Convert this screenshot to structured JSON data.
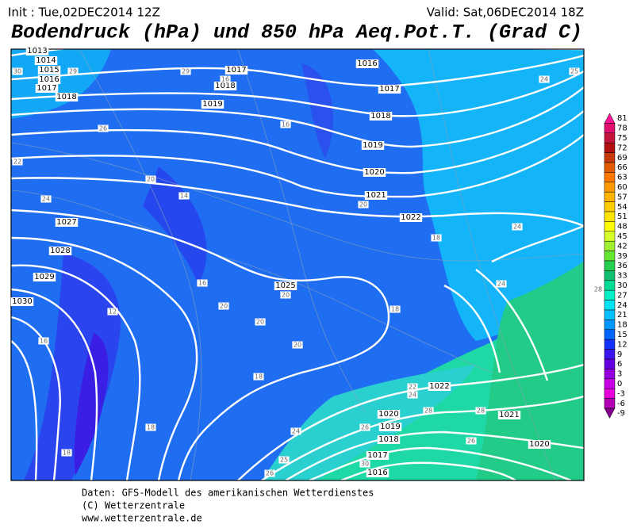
{
  "header": {
    "init": "Init : Tue,02DEC2014 12Z",
    "valid": "Valid: Sat,06DEC2014 18Z",
    "title": "Bodendruck (hPa) und 850 hPa Aeq.Pot.T. (Grad C)"
  },
  "isobar_labels": [
    1013,
    1014,
    1015,
    1016,
    1017,
    1018,
    1017,
    1018,
    1019,
    1016,
    1017,
    1018,
    1019,
    1020,
    1021,
    1022,
    1025,
    1027,
    1028,
    1029,
    1030,
    1022,
    1021,
    1020,
    1019,
    1018,
    1017,
    1016,
    1020
  ],
  "temperature_labels": [
    30,
    29,
    29,
    16,
    26,
    16,
    22,
    20,
    14,
    24,
    20,
    18,
    24,
    24,
    28,
    20,
    18,
    16,
    20,
    20,
    20,
    12,
    16,
    18,
    18,
    18,
    24,
    22,
    24,
    28,
    28,
    26,
    26,
    30,
    26,
    25,
    24,
    25
  ],
  "legend": {
    "labels": [
      81,
      78,
      75,
      72,
      69,
      66,
      63,
      60,
      57,
      54,
      51,
      48,
      45,
      42,
      39,
      36,
      33,
      30,
      27,
      24,
      21,
      18,
      15,
      12,
      9,
      6,
      3,
      0,
      -3,
      -6,
      -9
    ],
    "colors": [
      "#ff1493",
      "#e0106e",
      "#c4143c",
      "#b01010",
      "#c83808",
      "#e05a00",
      "#ff7800",
      "#ff9800",
      "#ffb400",
      "#ffcc00",
      "#ffe400",
      "#ffff00",
      "#d4ff28",
      "#a0f030",
      "#64e632",
      "#28d050",
      "#10c070",
      "#00dc96",
      "#00f0c8",
      "#00e4f4",
      "#00c0ff",
      "#0096ff",
      "#0064ff",
      "#1432ff",
      "#3c14f0",
      "#6400e0",
      "#9600e0",
      "#c800e6",
      "#e600dc",
      "#b400b4",
      "#82008c"
    ]
  },
  "footer": {
    "source": "Daten: GFS-Modell des amerikanischen Wetterdienstes",
    "copyright": "(C) Wetterzentrale",
    "url": "www.wetterzentrale.de"
  }
}
